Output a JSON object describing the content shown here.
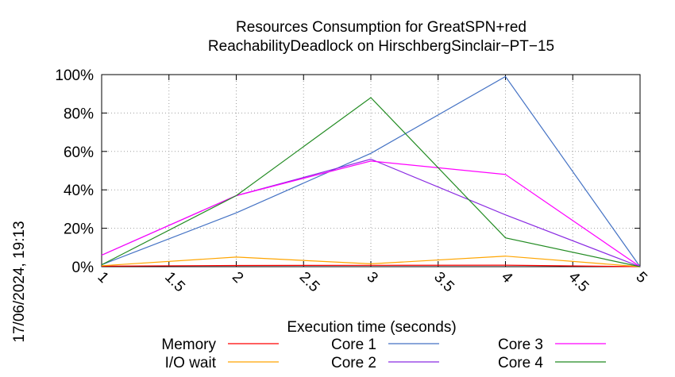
{
  "chart_data": {
    "type": "line",
    "title": [
      "Resources Consumption for GreatSPN+red",
      "ReachabilityDeadlock on HirschbergSinclair−PT−15"
    ],
    "xlabel": "Execution time (seconds)",
    "ylabel": "",
    "side_label": "17/06/2024, 19:13",
    "xlim": [
      1,
      5
    ],
    "ylim": [
      0,
      100
    ],
    "x_ticks": [
      1,
      1.5,
      2,
      2.5,
      3,
      3.5,
      4,
      4.5,
      5
    ],
    "x_tick_labels": [
      "1",
      "1.5",
      "2",
      "2.5",
      "3",
      "3.5",
      "4",
      "4.5",
      "5"
    ],
    "y_ticks": [
      0,
      20,
      40,
      60,
      80,
      100
    ],
    "y_tick_labels": [
      "0%",
      "20%",
      "40%",
      "60%",
      "80%",
      "100%"
    ],
    "grid": true,
    "legend_position": "bottom",
    "series": [
      {
        "name": "Memory",
        "color": "#ff0000",
        "x": [
          1,
          2,
          3,
          4,
          5
        ],
        "y": [
          0.3,
          0.6,
          0.7,
          0.8,
          0
        ]
      },
      {
        "name": "I/O wait",
        "color": "#ffa500",
        "x": [
          1,
          2,
          3,
          4,
          5
        ],
        "y": [
          0.5,
          5,
          1.5,
          5.5,
          0
        ]
      },
      {
        "name": "Core 1",
        "color": "#4472c4",
        "x": [
          1,
          2,
          3,
          4,
          5
        ],
        "y": [
          1,
          28,
          59,
          99,
          0
        ]
      },
      {
        "name": "Core 2",
        "color": "#8a2be2",
        "x": [
          1,
          2,
          3,
          4,
          5
        ],
        "y": [
          6,
          37,
          56,
          27,
          0
        ]
      },
      {
        "name": "Core 3",
        "color": "#ff00ff",
        "x": [
          1,
          2,
          3,
          4,
          5
        ],
        "y": [
          6,
          37,
          55,
          48,
          0
        ]
      },
      {
        "name": "Core 4",
        "color": "#228b22",
        "x": [
          1,
          2,
          3,
          4,
          5
        ],
        "y": [
          1,
          37,
          88,
          15,
          0
        ]
      }
    ]
  }
}
